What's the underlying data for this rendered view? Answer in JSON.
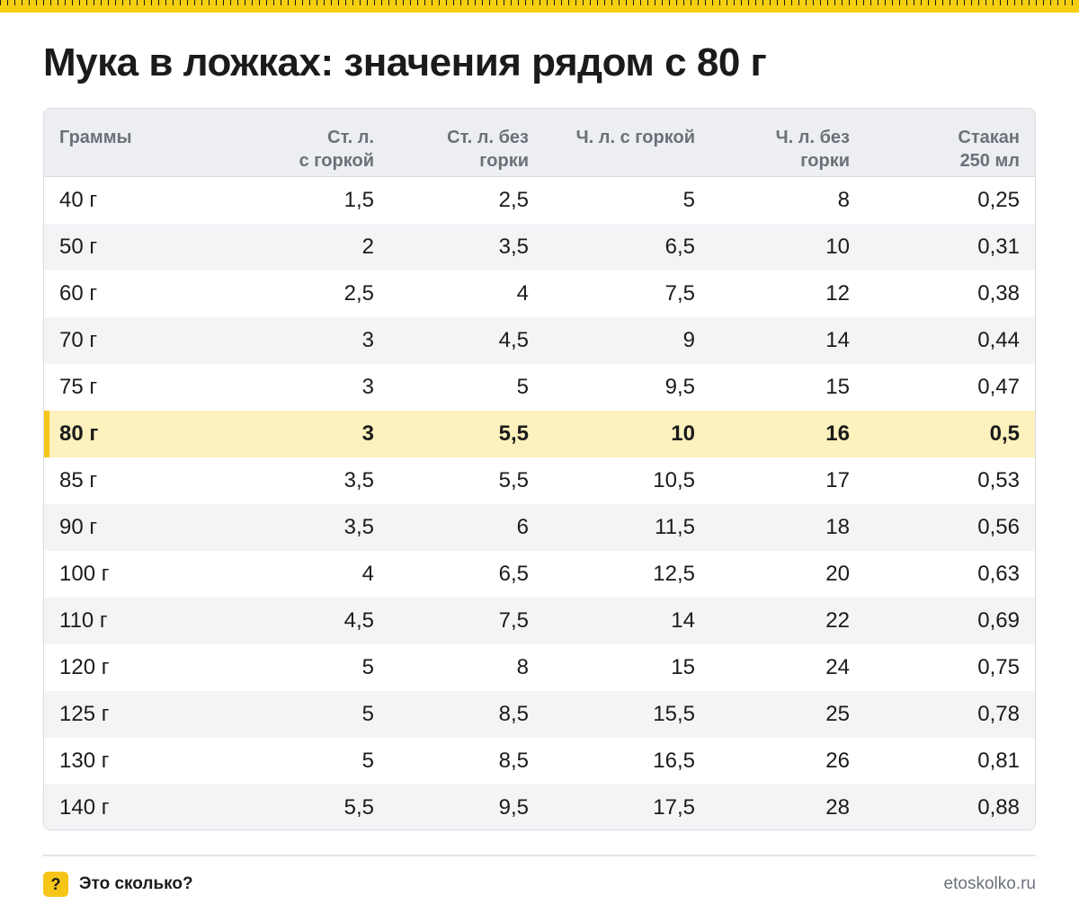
{
  "title": "Мука в ложках: значения рядом с 80 г",
  "table": {
    "headers": [
      "Граммы",
      "Ст. л.\nс горкой",
      "Ст. л. без\nгорки",
      "Ч. л. с горкой",
      "Ч. л. без\nгорки",
      "Стакан\n250 мл"
    ],
    "highlight_row": 5,
    "rows": [
      [
        "40 г",
        "1,5",
        "2,5",
        "5",
        "8",
        "0,25"
      ],
      [
        "50 г",
        "2",
        "3,5",
        "6,5",
        "10",
        "0,31"
      ],
      [
        "60 г",
        "2,5",
        "4",
        "7,5",
        "12",
        "0,38"
      ],
      [
        "70 г",
        "3",
        "4,5",
        "9",
        "14",
        "0,44"
      ],
      [
        "75 г",
        "3",
        "5",
        "9,5",
        "15",
        "0,47"
      ],
      [
        "80 г",
        "3",
        "5,5",
        "10",
        "16",
        "0,5"
      ],
      [
        "85 г",
        "3,5",
        "5,5",
        "10,5",
        "17",
        "0,53"
      ],
      [
        "90 г",
        "3,5",
        "6",
        "11,5",
        "18",
        "0,56"
      ],
      [
        "100 г",
        "4",
        "6,5",
        "12,5",
        "20",
        "0,63"
      ],
      [
        "110 г",
        "4,5",
        "7,5",
        "14",
        "22",
        "0,69"
      ],
      [
        "120 г",
        "5",
        "8",
        "15",
        "24",
        "0,75"
      ],
      [
        "125 г",
        "5",
        "8,5",
        "15,5",
        "25",
        "0,78"
      ],
      [
        "130 г",
        "5",
        "8,5",
        "16,5",
        "26",
        "0,81"
      ],
      [
        "140 г",
        "5,5",
        "9,5",
        "17,5",
        "28",
        "0,88"
      ]
    ]
  },
  "footer": {
    "badge": "?",
    "brand": "Это сколько?",
    "site": "etoskolko.ru"
  },
  "colors": {
    "accent": "#f5c518",
    "highlight_bg": "#fdf1bd",
    "header_bg": "#eceef1",
    "alt_row_bg": "#f3f4f6"
  }
}
